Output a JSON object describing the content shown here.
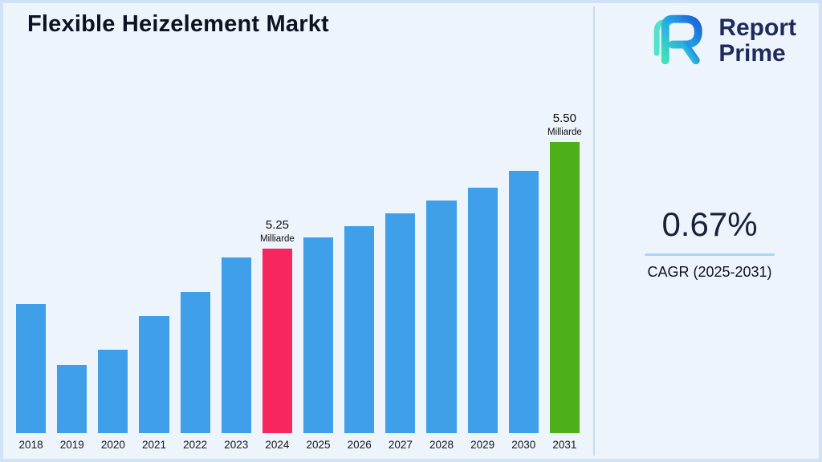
{
  "page": {
    "title": "Flexible Heizelement Markt",
    "background_color": "#eef4fb",
    "border_color": "#cfe2f6",
    "divider_color": "#c6dcf2"
  },
  "logo": {
    "line1": "Report",
    "line2": "Prime",
    "text_color": "#1e2a5c",
    "icon": "report-prime-logo-icon",
    "icon_gradient_start": "#3fe3b6",
    "icon_gradient_mid": "#23a3e8",
    "icon_gradient_end": "#1b62d6"
  },
  "stats": {
    "cagr_value": "0.67%",
    "cagr_label": "CAGR (2025-2031)",
    "underline_color": "#a9d6f5"
  },
  "chart_data": {
    "type": "bar",
    "title": "Flexible Heizelement Markt",
    "xlabel": "",
    "ylabel": "",
    "axis_values_shown": false,
    "grid": false,
    "legend": false,
    "categories": [
      "2018",
      "2019",
      "2020",
      "2021",
      "2022",
      "2023",
      "2024",
      "2025",
      "2026",
      "2027",
      "2028",
      "2029",
      "2030",
      "2031"
    ],
    "values": [
      161,
      85,
      104,
      146,
      176,
      219,
      230,
      244,
      258,
      274,
      290,
      306,
      327,
      363
    ],
    "values_unit": "relative-bar-height-px (no numeric axis shown)",
    "data_labels": {
      "2024": "5.25 Milliarde",
      "2031": "5.50 Milliarde"
    },
    "annotations": [
      {
        "category": "2024",
        "value": "5.25",
        "unit": "Milliarde"
      },
      {
        "category": "2031",
        "value": "5.50",
        "unit": "Milliarde"
      }
    ],
    "colors": {
      "default": "#3f9fe8",
      "2024": "#f8265e",
      "2031": "#4daf1a"
    }
  }
}
